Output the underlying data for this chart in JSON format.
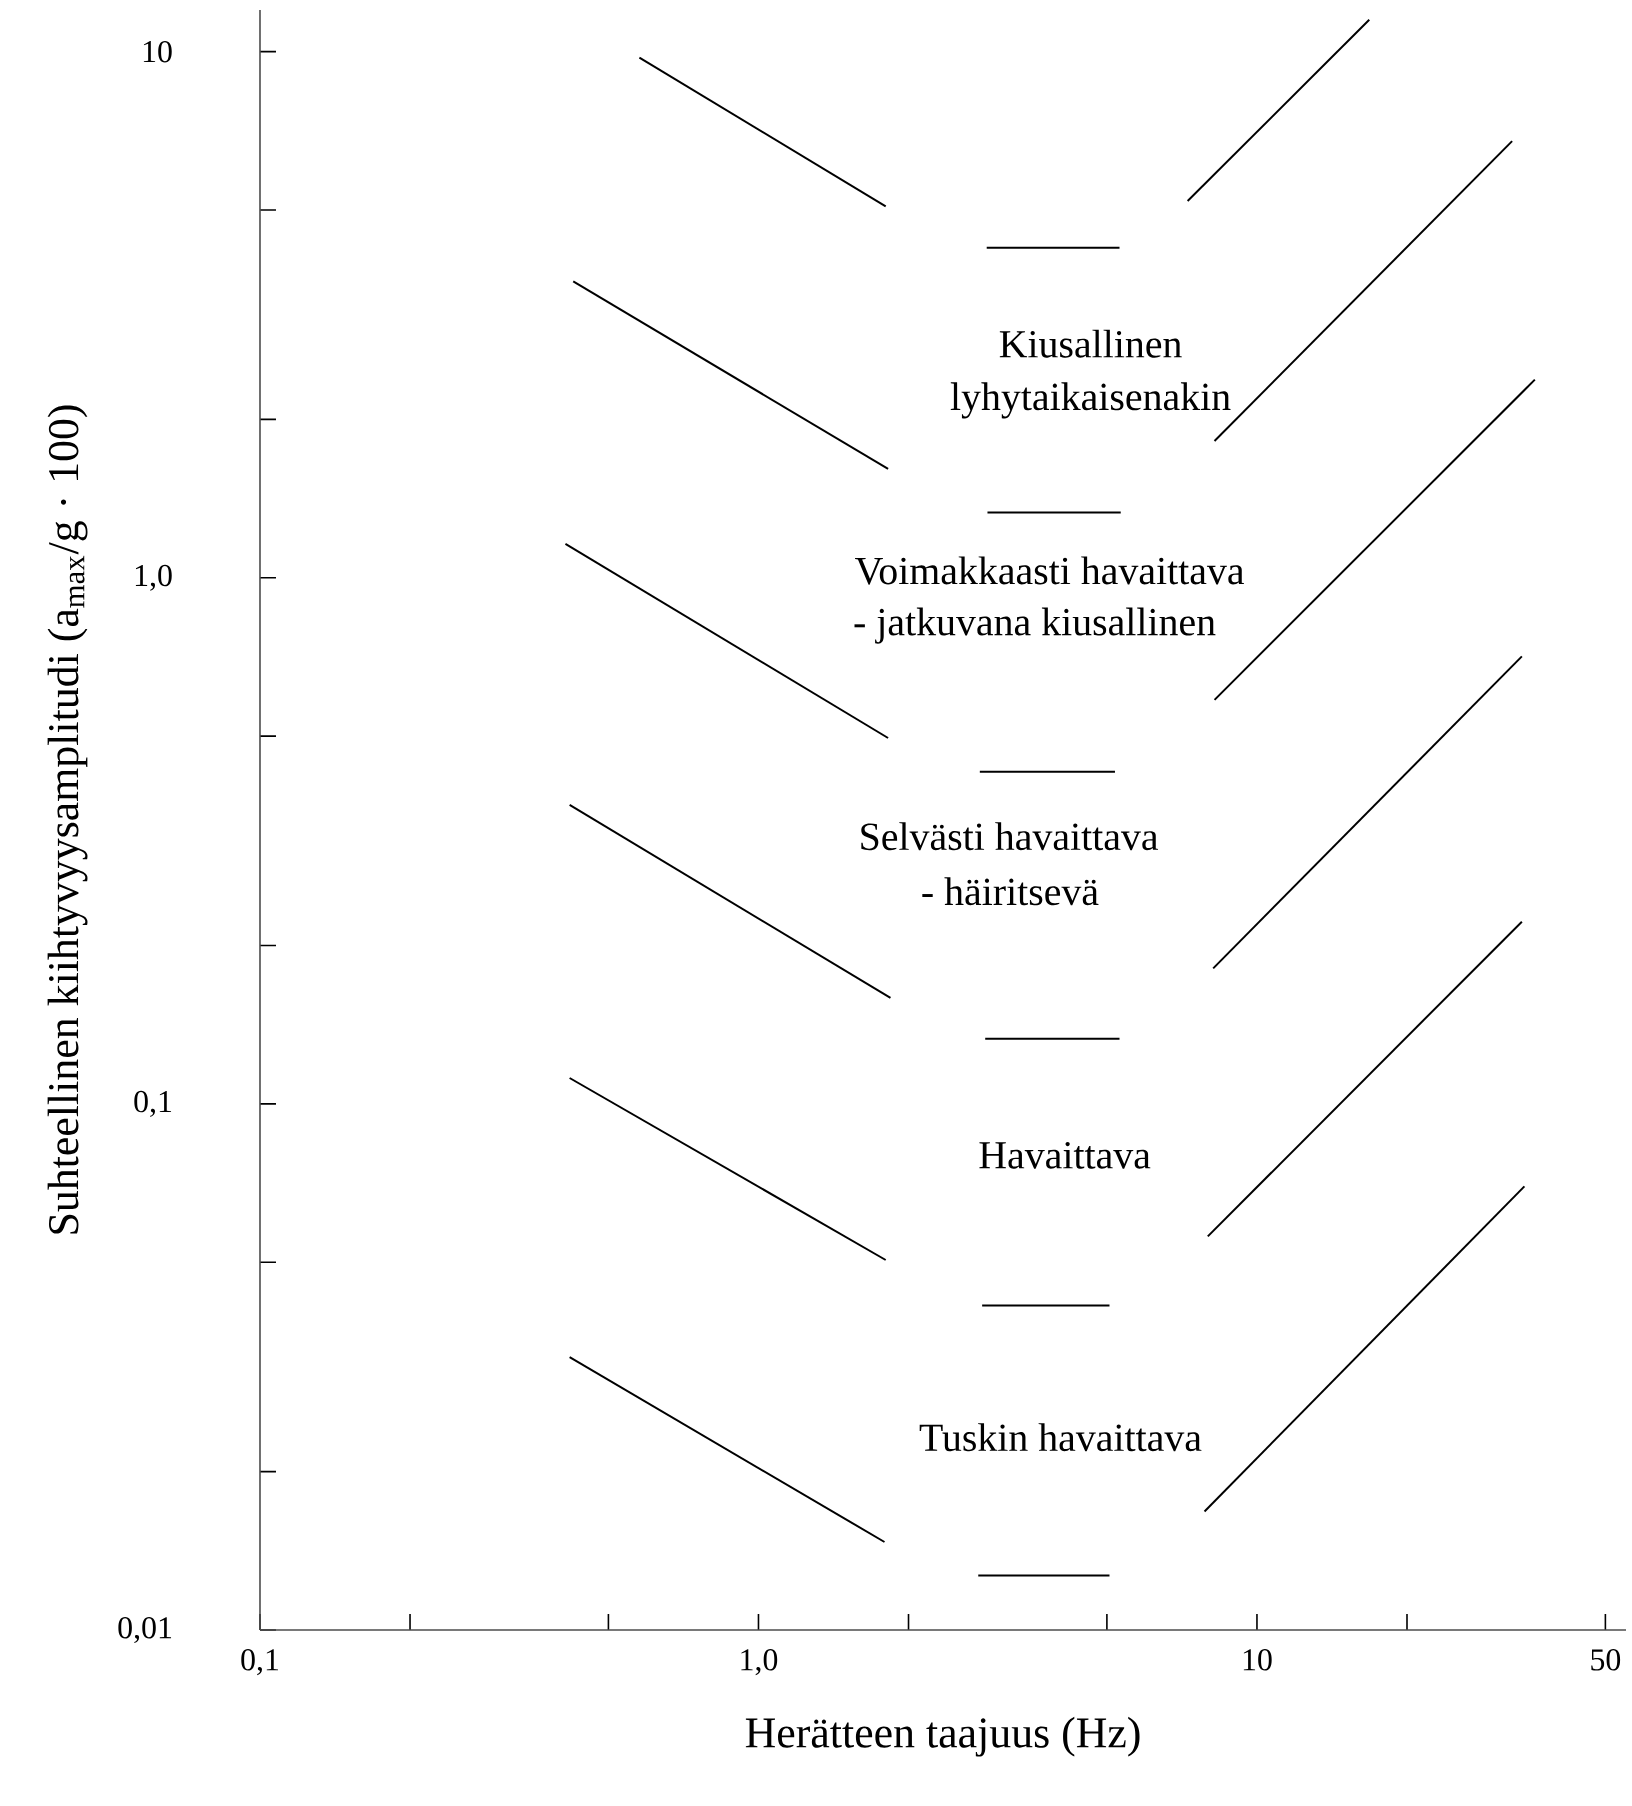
{
  "chart_data": {
    "type": "line",
    "xlabel": "Herätteen taajuus (Hz)",
    "ylabel": "Suhteellinen kiihtyvyysamplitudi (a$_{max}$/g · 100)",
    "log": "xy",
    "xlim": [
      0.1,
      55
    ],
    "ylim": [
      0.01,
      12
    ],
    "xticks": [
      {
        "value": 0.1,
        "label": "0,1"
      },
      {
        "value": 0.2,
        "label": null
      },
      {
        "value": 0.5,
        "label": null
      },
      {
        "value": 1,
        "label": "1,0"
      },
      {
        "value": 2,
        "label": null
      },
      {
        "value": 5,
        "label": null
      },
      10,
      {
        "value": 20,
        "label": null
      },
      50
    ],
    "yticks": [
      {
        "value": 0.01,
        "label": "0,01"
      },
      {
        "value": 0.02,
        "label": null
      },
      {
        "value": 0.05,
        "label": null
      },
      {
        "value": 0.1,
        "label": "0,1"
      },
      {
        "value": 0.2,
        "label": null
      },
      {
        "value": 0.5,
        "label": null
      },
      {
        "value": 1,
        "label": "1,0"
      },
      {
        "value": 2,
        "label": null
      },
      {
        "value": 5,
        "label": null
      },
      10
    ],
    "series": [
      {
        "color": "#000000",
        "x": [
          0.577,
          1.8
        ],
        "values": [
          9.74,
          5.08
        ]
      },
      {
        "color": "#000000",
        "x": [
          0.425,
          1.82
        ],
        "values": [
          3.66,
          1.61
        ]
      },
      {
        "color": "#000000",
        "x": [
          0.41,
          1.82
        ],
        "values": [
          1.16,
          0.496
        ]
      },
      {
        "color": "#000000",
        "x": [
          0.418,
          1.84
        ],
        "values": [
          0.37,
          0.159
        ]
      },
      {
        "color": "#000000",
        "x": [
          0.418,
          1.8
        ],
        "values": [
          0.112,
          0.0505
        ]
      },
      {
        "color": "#000000",
        "x": [
          0.418,
          1.79
        ],
        "values": [
          0.033,
          0.0147
        ]
      },
      {
        "color": "#000000",
        "x": [
          2.87,
          5.3
        ],
        "values": [
          4.24,
          4.24
        ]
      },
      {
        "color": "#000000",
        "x": [
          2.88,
          5.33
        ],
        "values": [
          1.33,
          1.33
        ]
      },
      {
        "color": "#000000",
        "x": [
          2.78,
          5.19
        ],
        "values": [
          0.428,
          0.428
        ]
      },
      {
        "color": "#000000",
        "x": [
          2.85,
          5.3
        ],
        "values": [
          0.133,
          0.133
        ]
      },
      {
        "color": "#000000",
        "x": [
          2.81,
          5.06
        ],
        "values": [
          0.0414,
          0.0414
        ]
      },
      {
        "color": "#000000",
        "x": [
          2.76,
          5.06
        ],
        "values": [
          0.0127,
          0.0127
        ]
      },
      {
        "color": "#000000",
        "x": [
          7.26,
          16.8
        ],
        "values": [
          5.2,
          11.5
        ]
      },
      {
        "color": "#000000",
        "x": [
          8.22,
          32.5
        ],
        "values": [
          1.82,
          6.76
        ]
      },
      {
        "color": "#000000",
        "x": [
          8.22,
          36.1
        ],
        "values": [
          0.586,
          2.38
        ]
      },
      {
        "color": "#000000",
        "x": [
          8.17,
          34.0
        ],
        "values": [
          0.181,
          0.709
        ]
      },
      {
        "color": "#000000",
        "x": [
          7.97,
          34.0
        ],
        "values": [
          0.056,
          0.222
        ]
      },
      {
        "color": "#000000",
        "x": [
          7.85,
          34.4
        ],
        "values": [
          0.0168,
          0.0697
        ]
      }
    ],
    "annotations": [
      "Kiusallinen",
      "lyhytaikaisenakin",
      "Voimakkaasti havaittava",
      "- jatkuvana kiusallinen",
      "Selvästi havaittava",
      "- häiritsevä",
      "Havaittava",
      "Tuskin havaittava"
    ]
  }
}
